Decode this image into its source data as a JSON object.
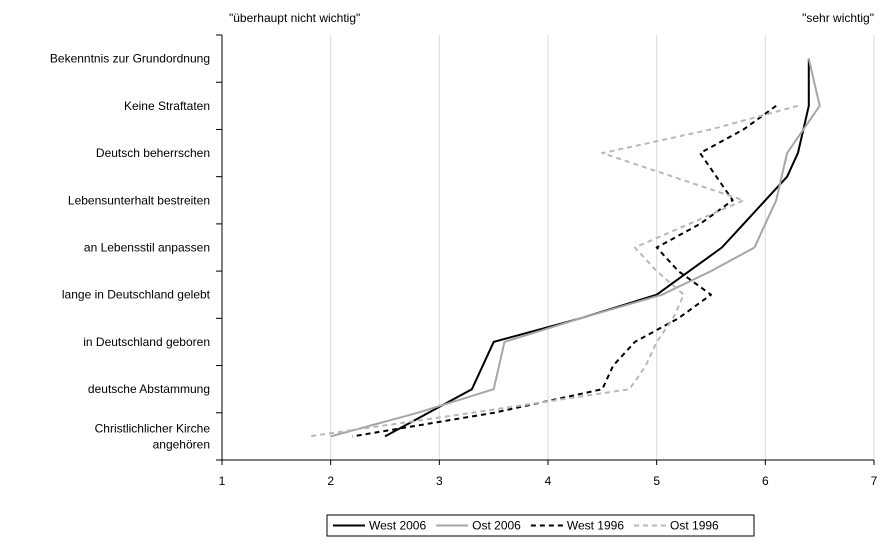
{
  "chart_data": {
    "type": "line",
    "title": "",
    "xlabel": "",
    "ylabel": "",
    "xlim": [
      1,
      7
    ],
    "x_ticks": [
      "1",
      "2",
      "3",
      "4",
      "5",
      "6",
      "7"
    ],
    "scale_low_label": "\"überhaupt nicht wichtig\"",
    "scale_high_label": "\"sehr wichtig\"",
    "categories": [
      [
        "Bekenntnis zur Grundordnung"
      ],
      [
        "Keine Straftaten"
      ],
      [
        "Deutsch beherrschen"
      ],
      [
        "Lebensunterhalt bestreiten"
      ],
      [
        "an Lebensstil anpassen"
      ],
      [
        "lange in Deutschland gelebt"
      ],
      [
        "in Deutschland geboren"
      ],
      [
        "deutsche Abstammung"
      ],
      [
        "Christlichlicher Kirche",
        "angehören"
      ]
    ],
    "grid": "vertical",
    "legend_position": "bottom",
    "series": [
      {
        "name": "West 2006",
        "color": "#000000",
        "dash": "solid",
        "points": [
          [
            6.4,
            0
          ],
          [
            6.4,
            0.5
          ],
          [
            6.4,
            1
          ],
          [
            6.35,
            1.5
          ],
          [
            6.3,
            2
          ],
          [
            6.2,
            2.5
          ],
          [
            6.0,
            3
          ],
          [
            5.8,
            3.5
          ],
          [
            5.6,
            4
          ],
          [
            5.3,
            4.5
          ],
          [
            5.0,
            5
          ],
          [
            4.3,
            5.5
          ],
          [
            3.5,
            6
          ],
          [
            3.4,
            6.5
          ],
          [
            3.3,
            7
          ],
          [
            2.9,
            7.5
          ],
          [
            2.5,
            8
          ]
        ]
      },
      {
        "name": "Ost 2006",
        "color": "#a6a6a6",
        "dash": "solid",
        "points": [
          [
            6.4,
            0
          ],
          [
            6.45,
            0.5
          ],
          [
            6.5,
            1
          ],
          [
            6.35,
            1.5
          ],
          [
            6.2,
            2
          ],
          [
            6.15,
            2.5
          ],
          [
            6.1,
            3
          ],
          [
            6.0,
            3.5
          ],
          [
            5.9,
            4
          ],
          [
            5.5,
            4.5
          ],
          [
            5.05,
            5
          ],
          [
            4.3,
            5.5
          ],
          [
            3.6,
            6
          ],
          [
            3.55,
            6.5
          ],
          [
            3.5,
            7
          ],
          [
            2.8,
            7.5
          ],
          [
            2.0,
            8
          ]
        ]
      },
      {
        "name": "West 1996",
        "color": "#000000",
        "dash": "dashed",
        "points": [
          [
            6.1,
            1
          ],
          [
            5.8,
            1.5
          ],
          [
            5.4,
            2
          ],
          [
            5.55,
            2.5
          ],
          [
            5.7,
            3
          ],
          [
            5.4,
            3.5
          ],
          [
            5.0,
            4
          ],
          [
            5.2,
            4.5
          ],
          [
            5.5,
            5
          ],
          [
            5.2,
            5.5
          ],
          [
            4.8,
            6
          ],
          [
            4.6,
            6.5
          ],
          [
            4.5,
            7
          ],
          [
            3.5,
            7.5
          ],
          [
            2.2,
            8
          ]
        ]
      },
      {
        "name": "Ost 1996",
        "color": "#b8b8b8",
        "dash": "dashed",
        "points": [
          [
            6.3,
            1
          ],
          [
            5.5,
            1.5
          ],
          [
            4.5,
            2
          ],
          [
            5.15,
            2.5
          ],
          [
            5.8,
            3
          ],
          [
            5.3,
            3.5
          ],
          [
            4.8,
            4
          ],
          [
            5.0,
            4.5
          ],
          [
            5.25,
            5
          ],
          [
            5.15,
            5.5
          ],
          [
            5.0,
            6
          ],
          [
            4.9,
            6.5
          ],
          [
            4.75,
            7
          ],
          [
            3.3,
            7.5
          ],
          [
            1.8,
            8
          ]
        ]
      }
    ]
  }
}
